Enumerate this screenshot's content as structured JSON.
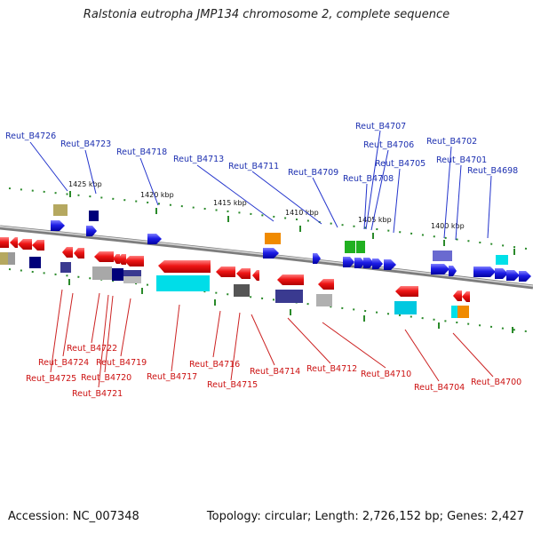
{
  "title": "Ralstonia eutropha JMP134 chromosome 2, complete sequence",
  "footer": {
    "accession": "Accession: NC_007348",
    "stats": "Topology: circular; Length: 2,726,152 bp; Genes: 2,427"
  },
  "scale_labels": [
    "1425 kbp",
    "1420 kbp",
    "1415 kbp",
    "1410 kbp",
    "1405 kbp",
    "1400 kbp"
  ],
  "top_labels": [
    "Reut_B4726",
    "Reut_B4723",
    "Reut_B4718",
    "Reut_B4713",
    "Reut_B4711",
    "Reut_B4709",
    "Reut_B4707",
    "Reut_B4706",
    "Reut_B4705",
    "Reut_B4708",
    "Reut_B4702",
    "Reut_B4701",
    "Reut_B4698"
  ],
  "bottom_labels": [
    "Reut_B4722",
    "Reut_B4724",
    "Reut_B4719",
    "Reut_B4725",
    "Reut_B4720",
    "Reut_B4721",
    "Reut_B4717",
    "Reut_B4716",
    "Reut_B4715",
    "Reut_B4714",
    "Reut_B4712",
    "Reut_B4710",
    "Reut_B4704",
    "Reut_B4700"
  ],
  "colors": {
    "top_label": "#1c2fb0",
    "bottom_label": "#cc1111",
    "forward_gene": "#1e1ee6",
    "reverse_gene": "#ee1515",
    "backbone": "#8c8c8c",
    "ticks": "#2a8a2a"
  }
}
